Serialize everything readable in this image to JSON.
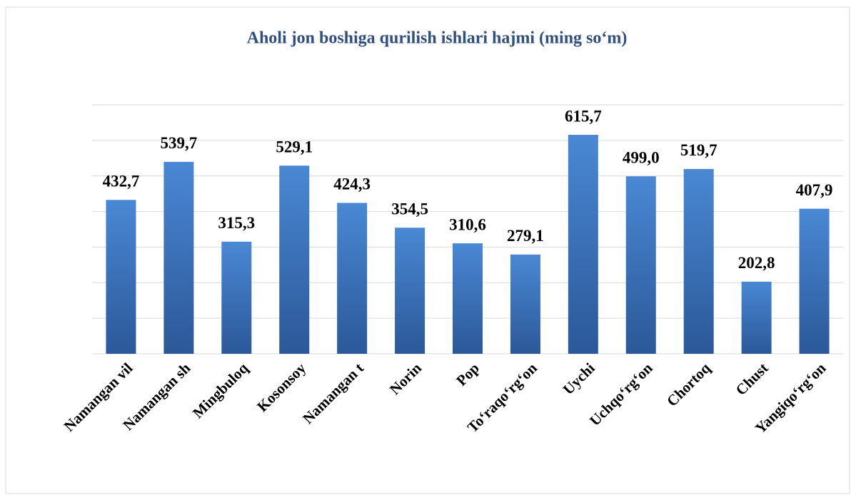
{
  "chart_data": {
    "type": "bar",
    "title": "Aholi jon boshiga qurilish ishlari hajmi (ming so‘m)",
    "categories": [
      "Namangan vil",
      "Namangan sh",
      "Mingbuloq",
      "Kosonsoy",
      "Namangan t",
      "Norin",
      "Pop",
      "To‘raqo‘rg‘on",
      "Uychi",
      "Uchqo‘rg‘on",
      "Chortoq",
      "Chust",
      "Yangiqo‘rg‘on"
    ],
    "values": [
      432.7,
      539.7,
      315.3,
      529.1,
      424.3,
      354.5,
      310.6,
      279.1,
      615.7,
      499.0,
      519.7,
      202.8,
      407.9
    ],
    "value_labels": [
      "432,7",
      "539,7",
      "315,3",
      "529,1",
      "424,3",
      "354,5",
      "310,6",
      "279,1",
      "615,7",
      "499,0",
      "519,7",
      "202,8",
      "407,9"
    ],
    "color": "#3a74c0",
    "ylim": [
      0,
      700
    ],
    "yticks": [
      0,
      100,
      200,
      300,
      400,
      500,
      600,
      700
    ],
    "grid": true
  }
}
